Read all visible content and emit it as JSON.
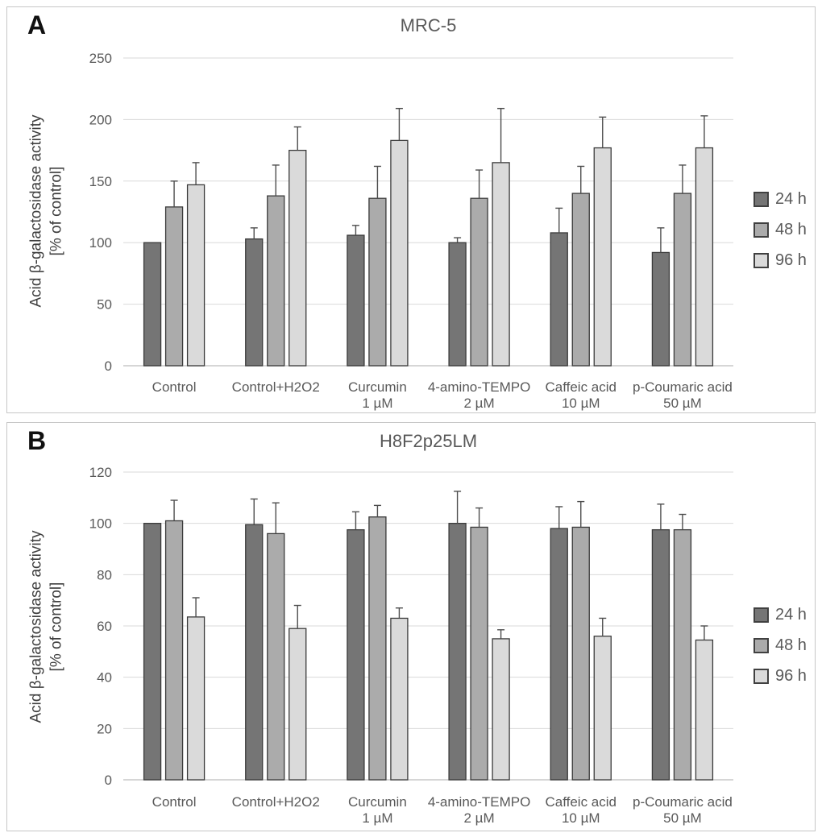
{
  "style": {
    "series_colors": [
      "#757575",
      "#ababab",
      "#dadada"
    ],
    "bar_border": "#3a3a3a",
    "error_color": "#4d4d4d",
    "grid_color": "#d9d9d9",
    "axis_line_color": "#c8c8c8",
    "tick_text_color": "#595959",
    "title_color": "#595959",
    "ylabel_color": "#3f3f3f",
    "panel_border": "#c6c6c6"
  },
  "chart_data": [
    {
      "type": "bar",
      "panel_label": "A",
      "title": "MRC-5",
      "ylabel_line1": "Acid β-galactosidase activity",
      "ylabel_line2": "[% of control]",
      "ylim": [
        0,
        250
      ],
      "yticks": [
        0,
        50,
        100,
        150,
        200,
        250
      ],
      "grid": true,
      "legend_position": "right",
      "categories": [
        {
          "label": "Control",
          "sublabel": ""
        },
        {
          "label": "Control+H2O2",
          "sublabel": ""
        },
        {
          "label": "Curcumin",
          "sublabel": "1 µM"
        },
        {
          "label": "4-amino-TEMPO",
          "sublabel": "2 µM"
        },
        {
          "label": "Caffeic acid",
          "sublabel": "10 µM"
        },
        {
          "label": "p-Coumaric acid",
          "sublabel": "50 µM"
        }
      ],
      "series": [
        {
          "name": "24 h",
          "values": [
            100,
            103,
            106,
            100,
            108,
            92
          ],
          "errors": [
            0,
            9,
            8,
            4,
            20,
            20
          ]
        },
        {
          "name": "48 h",
          "values": [
            129,
            138,
            136,
            136,
            140,
            140
          ],
          "errors": [
            21,
            25,
            26,
            23,
            22,
            23
          ]
        },
        {
          "name": "96 h",
          "values": [
            147,
            175,
            183,
            165,
            177,
            177
          ],
          "errors": [
            18,
            19,
            26,
            44,
            25,
            26
          ]
        }
      ]
    },
    {
      "type": "bar",
      "panel_label": "B",
      "title": "H8F2p25LM",
      "ylabel_line1": "Acid β-galactosidase activity",
      "ylabel_line2": "[% of control]",
      "ylim": [
        0,
        120
      ],
      "yticks": [
        0,
        20,
        40,
        60,
        80,
        100,
        120
      ],
      "grid": true,
      "legend_position": "right",
      "categories": [
        {
          "label": "Control",
          "sublabel": ""
        },
        {
          "label": "Control+H2O2",
          "sublabel": ""
        },
        {
          "label": "Curcumin",
          "sublabel": "1 µM"
        },
        {
          "label": "4-amino-TEMPO",
          "sublabel": "2 µM"
        },
        {
          "label": "Caffeic acid",
          "sublabel": "10 µM"
        },
        {
          "label": "p-Coumaric acid",
          "sublabel": "50 µM"
        }
      ],
      "series": [
        {
          "name": "24 h",
          "values": [
            100,
            99.5,
            97.5,
            100,
            98,
            97.5
          ],
          "errors": [
            0,
            10,
            7,
            12.5,
            8.5,
            10
          ]
        },
        {
          "name": "48 h",
          "values": [
            101,
            96,
            102.5,
            98.5,
            98.5,
            97.5
          ],
          "errors": [
            8,
            12,
            4.5,
            7.5,
            10,
            6
          ]
        },
        {
          "name": "96 h",
          "values": [
            63.5,
            59,
            63,
            55,
            56,
            54.5
          ],
          "errors": [
            7.5,
            9,
            4,
            3.5,
            7,
            5.5
          ]
        }
      ]
    }
  ]
}
